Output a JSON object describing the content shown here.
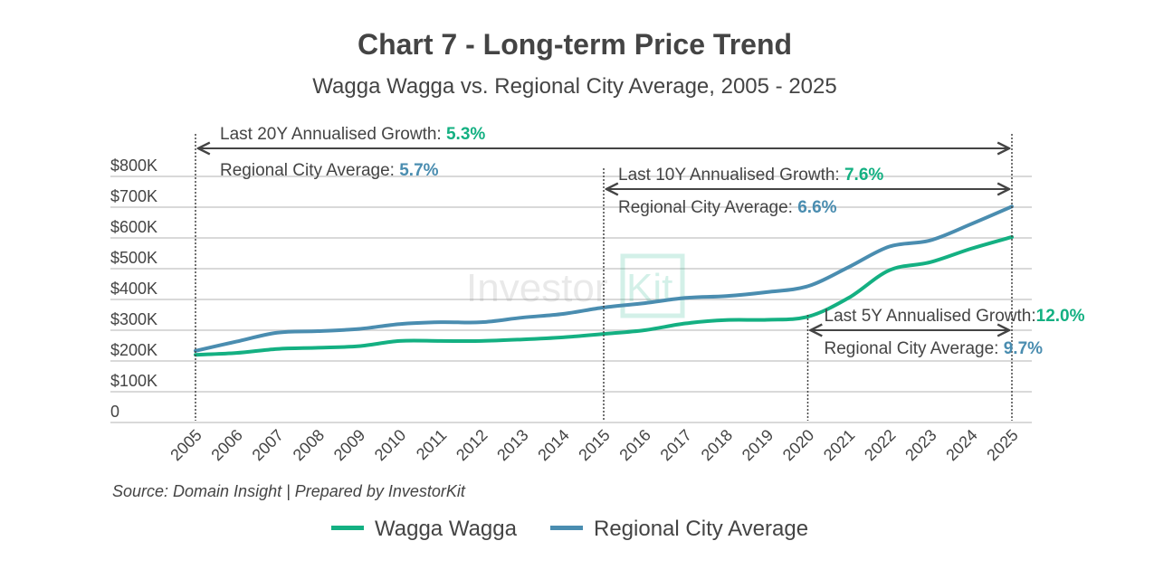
{
  "chart_data": {
    "type": "line",
    "title": "Chart 7 - Long-term Price Trend",
    "subtitle": "Wagga Wagga vs. Regional City Average, 2005 - 2025",
    "x": [
      "2005",
      "2006",
      "2007",
      "2008",
      "2009",
      "2010",
      "2011",
      "2012",
      "2013",
      "2014",
      "2015",
      "2016",
      "2017",
      "2018",
      "2019",
      "2020",
      "2021",
      "2022",
      "2023",
      "2024",
      "2025"
    ],
    "y_ticks": [
      "0",
      "$100K",
      "$200K",
      "$300K",
      "$400K",
      "$500K",
      "$600K",
      "$700K",
      "$800K"
    ],
    "ylim": [
      0,
      800000
    ],
    "grid": true,
    "legend_placement": "bottom",
    "series": [
      {
        "name": "Wagga Wagga",
        "color": "#14b082",
        "values": [
          220000,
          226000,
          239000,
          243000,
          248000,
          265000,
          265000,
          265000,
          270000,
          277000,
          288000,
          300000,
          322000,
          333000,
          334000,
          344000,
          405000,
          495000,
          521000,
          565000,
          603000
        ]
      },
      {
        "name": "Regional City Average",
        "color": "#4a8db0",
        "values": [
          233000,
          263000,
          292000,
          297000,
          304000,
          320000,
          326000,
          326000,
          341000,
          353000,
          374000,
          388000,
          405000,
          411000,
          424000,
          443000,
          505000,
          572000,
          592000,
          645000,
          702000
        ]
      }
    ],
    "annotations": [
      {
        "from": "2005",
        "to": "2025",
        "label": "Last 20Y Annualised Growth: ",
        "value": "5.3%",
        "avg_label": "Regional City Average: ",
        "avg_value": "5.7%"
      },
      {
        "from": "2015",
        "to": "2025",
        "label": "Last 10Y Annualised Growth: ",
        "value": "7.6%",
        "avg_label": "Regional City Average: ",
        "avg_value": "6.6%"
      },
      {
        "from": "2020",
        "to": "2025",
        "label": "Last 5Y Annualised Growth:",
        "value": "12.0%",
        "avg_label": "Regional City Average: ",
        "avg_value": "9.7%"
      }
    ],
    "source": "Source: Domain Insight | Prepared by InvestorKit",
    "watermark": "InvestorKit"
  }
}
